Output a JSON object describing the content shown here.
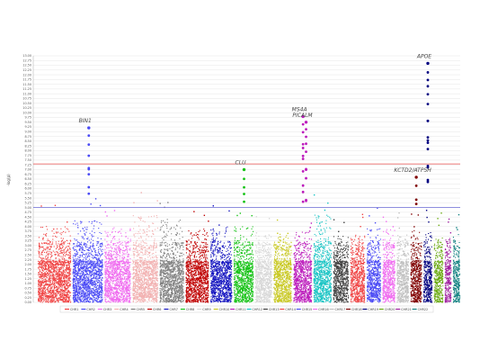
{
  "chart_data": {
    "type": "scatter",
    "subtype": "manhattan",
    "title": "",
    "xlabel": "",
    "ylabel": "-log(p)",
    "ylim": [
      0,
      13
    ],
    "ytick_step": 0.25,
    "grid": "horizontal",
    "legend_placement": "bottom",
    "thresholds": [
      {
        "value": 7.3,
        "color": "#e8504f"
      },
      {
        "value": 5.0,
        "color": "#6b6bd6"
      }
    ],
    "chromosomes": [
      {
        "name": "CHR1",
        "color": "#f04545",
        "max_bg": 4.0
      },
      {
        "name": "CHR2",
        "color": "#4a4af5",
        "max_bg": 4.3
      },
      {
        "name": "CHR3",
        "color": "#f06cf0",
        "max_bg": 4.0
      },
      {
        "name": "CHR4",
        "color": "#f2b1b1",
        "max_bg": 4.6
      },
      {
        "name": "CHR5",
        "color": "#808080",
        "max_bg": 4.4
      },
      {
        "name": "CHR6",
        "color": "#c00000",
        "max_bg": 3.9
      },
      {
        "name": "CHR7",
        "color": "#1515c0",
        "max_bg": 4.0
      },
      {
        "name": "CHR8",
        "color": "#16c316",
        "max_bg": 4.0
      },
      {
        "name": "CHR9",
        "color": "#d7d7d7",
        "max_bg": 3.6
      },
      {
        "name": "CHR10",
        "color": "#c8c820",
        "max_bg": 3.6
      },
      {
        "name": "CHR11",
        "color": "#bc1cbc",
        "max_bg": 3.7
      },
      {
        "name": "CHR12",
        "color": "#15c3c3",
        "max_bg": 4.6
      },
      {
        "name": "CHR13",
        "color": "#404040",
        "max_bg": 3.6
      },
      {
        "name": "CHR14",
        "color": "#f04545",
        "max_bg": 3.6
      },
      {
        "name": "CHR15",
        "color": "#4a4af5",
        "max_bg": 3.9
      },
      {
        "name": "CHR16",
        "color": "#f06cf0",
        "max_bg": 3.9
      },
      {
        "name": "CHR17",
        "color": "#c0c0c0",
        "max_bg": 3.6
      },
      {
        "name": "CHR18",
        "color": "#800000",
        "max_bg": 3.8
      },
      {
        "name": "CHR19",
        "color": "#000080",
        "max_bg": 3.8
      },
      {
        "name": "CHR20",
        "color": "#6aaa10",
        "max_bg": 3.6
      },
      {
        "name": "CHR21",
        "color": "#a020a0",
        "max_bg": 3.4
      },
      {
        "name": "CHR22",
        "color": "#108080",
        "max_bg": 3.6
      }
    ],
    "peaks": [
      {
        "chr": "CHR2",
        "y": 9.2,
        "label": "BIN1"
      },
      {
        "chr": "CHR8",
        "y": 7.0,
        "label": "CLU"
      },
      {
        "chr": "CHR11",
        "y": 9.8,
        "label": "MS4A"
      },
      {
        "chr": "CHR11",
        "y": 9.5,
        "label": "PICALM"
      },
      {
        "chr": "CHR18",
        "y": 6.6,
        "label": "KCTD2/ATP5H"
      },
      {
        "chr": "CHR19",
        "y": 12.6,
        "label": "APOE"
      }
    ]
  }
}
